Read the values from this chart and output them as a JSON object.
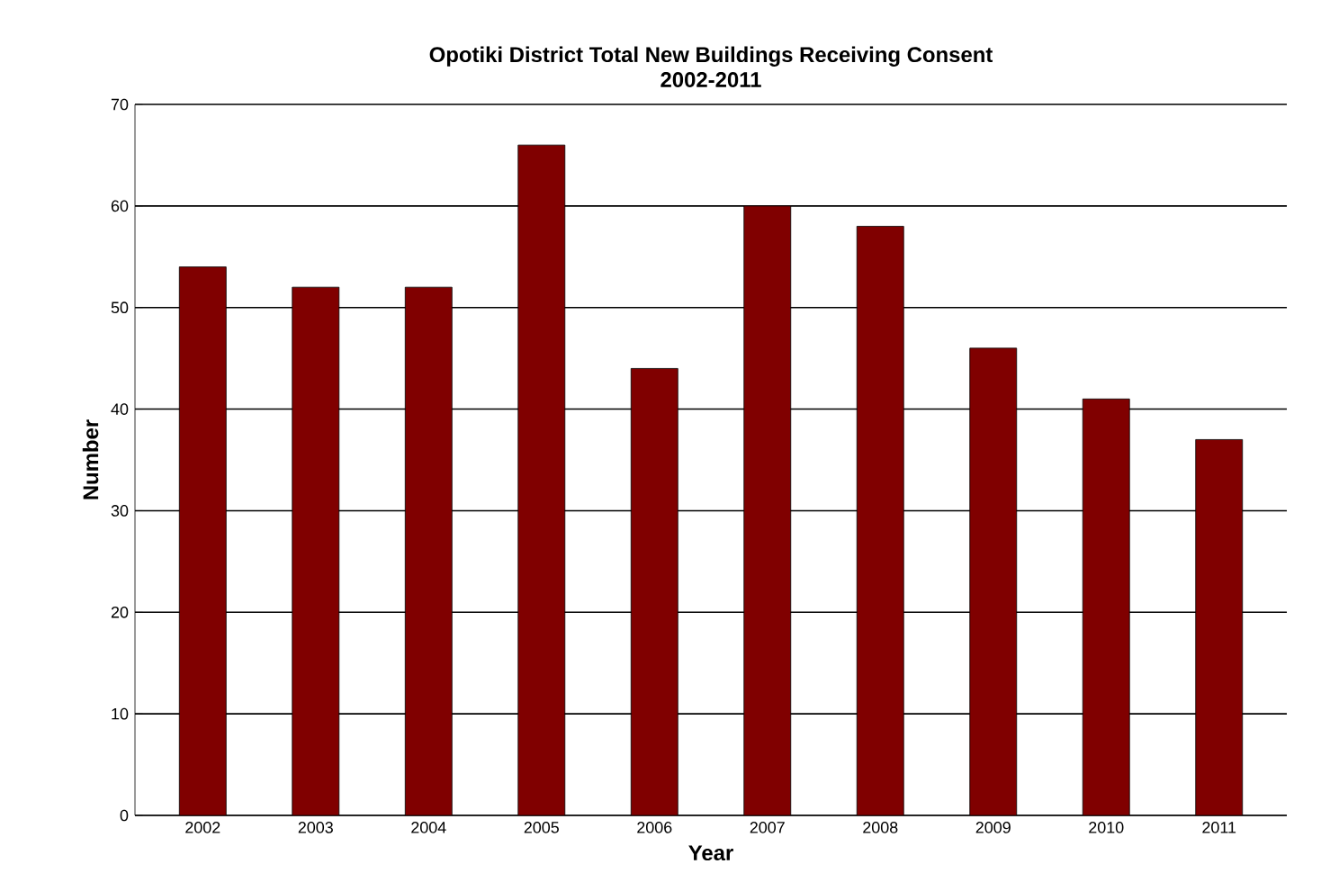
{
  "chart_data": {
    "type": "bar",
    "title": "Opotiki District Total New Buildings Receiving Consent",
    "subtitle": "2002-2011",
    "xlabel": "Year",
    "ylabel": "Number",
    "categories": [
      "2002",
      "2003",
      "2004",
      "2005",
      "2006",
      "2007",
      "2008",
      "2009",
      "2010",
      "2011"
    ],
    "values": [
      54,
      52,
      52,
      66,
      44,
      60,
      58,
      46,
      41,
      37
    ],
    "color": "#800000",
    "ylim": [
      0,
      70
    ],
    "yticks": [
      0,
      10,
      20,
      30,
      40,
      50,
      60,
      70
    ],
    "grid": "y"
  }
}
